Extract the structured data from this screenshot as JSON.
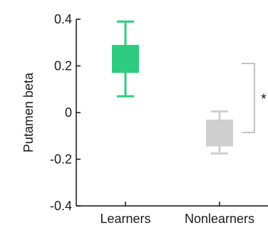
{
  "chart_data": {
    "type": "box",
    "ylabel": "Putamen beta",
    "ylim": [
      -0.4,
      0.4
    ],
    "yticks": [
      0.4,
      0.2,
      0,
      -0.2,
      -0.4
    ],
    "yticklabels": [
      "0.4",
      "0.2",
      "0",
      "-0.2",
      "-0.4"
    ],
    "categories": [
      "Learners",
      "Nonlearners"
    ],
    "boxes": [
      {
        "name": "Learners",
        "q1": 0.17,
        "q3": 0.29,
        "whisker_low": 0.07,
        "whisker_high": 0.39,
        "color": "#2ecc80"
      },
      {
        "name": "Nonlearners",
        "q1": -0.145,
        "q3": -0.03,
        "whisker_low": -0.175,
        "whisker_high": 0.005,
        "color": "#cfcfcf"
      }
    ],
    "significance": {
      "label": "*",
      "y_low": -0.085,
      "y_high": 0.21
    }
  }
}
